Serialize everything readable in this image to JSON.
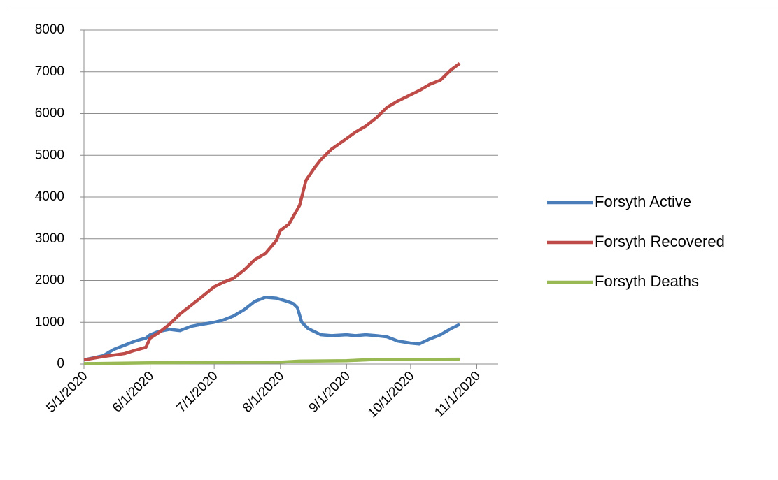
{
  "chart_data": {
    "type": "line",
    "xlim": [
      "5/1/2020",
      "11/11/2020"
    ],
    "xticks": [
      "5/1/2020",
      "6/1/2020",
      "7/1/2020",
      "8/1/2020",
      "9/1/2020",
      "10/1/2020",
      "11/1/2020"
    ],
    "ylim": [
      0,
      8000
    ],
    "yticks": [
      0,
      1000,
      2000,
      3000,
      4000,
      5000,
      6000,
      7000,
      8000
    ],
    "grid": true,
    "legend": "right",
    "series": [
      {
        "name": "Forsyth Active",
        "color": "#4a7ebb",
        "x": [
          "5/1/2020",
          "5/10/2020",
          "5/15/2020",
          "5/20/2020",
          "5/25/2020",
          "5/30/2020",
          "6/1/2020",
          "6/5/2020",
          "6/10/2020",
          "6/15/2020",
          "6/20/2020",
          "6/25/2020",
          "7/1/2020",
          "7/5/2020",
          "7/10/2020",
          "7/15/2020",
          "7/20/2020",
          "7/25/2020",
          "7/30/2020",
          "8/3/2020",
          "8/7/2020",
          "8/9/2020",
          "8/11/2020",
          "8/14/2020",
          "8/20/2020",
          "8/25/2020",
          "9/1/2020",
          "9/5/2020",
          "9/10/2020",
          "9/15/2020",
          "9/20/2020",
          "9/25/2020",
          "10/1/2020",
          "10/5/2020",
          "10/10/2020",
          "10/15/2020",
          "10/20/2020",
          "10/24/2020"
        ],
        "values": [
          100,
          200,
          350,
          450,
          550,
          620,
          700,
          780,
          830,
          800,
          900,
          950,
          1000,
          1050,
          1150,
          1300,
          1500,
          1600,
          1580,
          1520,
          1450,
          1350,
          1000,
          850,
          700,
          680,
          700,
          680,
          700,
          680,
          650,
          550,
          500,
          480,
          600,
          700,
          850,
          950
        ]
      },
      {
        "name": "Forsyth Recovered",
        "color": "#be4b48",
        "x": [
          "5/1/2020",
          "5/10/2020",
          "5/20/2020",
          "5/25/2020",
          "5/30/2020",
          "6/1/2020",
          "6/5/2020",
          "6/10/2020",
          "6/15/2020",
          "6/20/2020",
          "6/25/2020",
          "7/1/2020",
          "7/5/2020",
          "7/10/2020",
          "7/15/2020",
          "7/20/2020",
          "7/25/2020",
          "7/30/2020",
          "8/1/2020",
          "8/5/2020",
          "8/10/2020",
          "8/13/2020",
          "8/17/2020",
          "8/20/2020",
          "8/25/2020",
          "9/1/2020",
          "9/5/2020",
          "9/10/2020",
          "9/15/2020",
          "9/20/2020",
          "9/25/2020",
          "10/1/2020",
          "10/5/2020",
          "10/10/2020",
          "10/15/2020",
          "10/20/2020",
          "10/24/2020"
        ],
        "values": [
          100,
          180,
          250,
          330,
          400,
          620,
          750,
          950,
          1200,
          1400,
          1600,
          1850,
          1950,
          2050,
          2250,
          2500,
          2650,
          2950,
          3200,
          3350,
          3800,
          4400,
          4700,
          4900,
          5150,
          5400,
          5550,
          5700,
          5900,
          6150,
          6300,
          6450,
          6550,
          6700,
          6800,
          7050,
          7200
        ]
      },
      {
        "name": "Forsyth Deaths",
        "color": "#98b954",
        "x": [
          "5/1/2020",
          "6/1/2020",
          "7/1/2020",
          "8/1/2020",
          "8/10/2020",
          "9/1/2020",
          "9/15/2020",
          "10/1/2020",
          "10/24/2020"
        ],
        "values": [
          10,
          30,
          40,
          45,
          70,
          80,
          110,
          110,
          115
        ]
      }
    ]
  }
}
